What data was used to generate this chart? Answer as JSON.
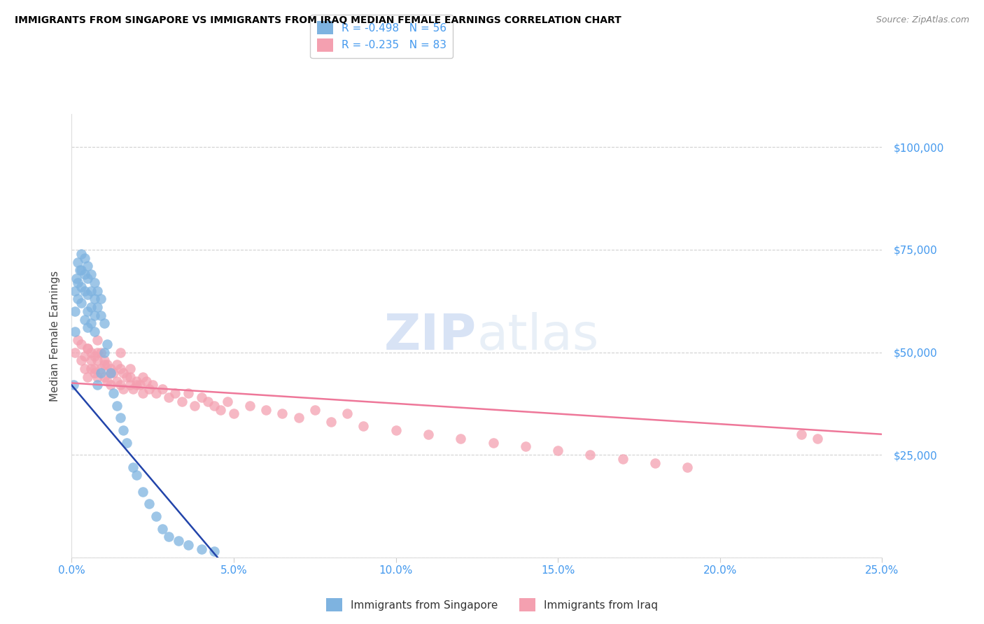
{
  "title": "IMMIGRANTS FROM SINGAPORE VS IMMIGRANTS FROM IRAQ MEDIAN FEMALE EARNINGS CORRELATION CHART",
  "source": "Source: ZipAtlas.com",
  "ylabel": "Median Female Earnings",
  "legend_singapore": "Immigrants from Singapore",
  "legend_iraq": "Immigrants from Iraq",
  "r_singapore": -0.498,
  "n_singapore": 56,
  "r_iraq": -0.235,
  "n_iraq": 83,
  "color_singapore": "#7EB3E0",
  "color_iraq": "#F4A0B0",
  "color_singapore_line": "#2244AA",
  "color_iraq_line": "#EE7799",
  "color_axis_labels": "#4499EE",
  "yticks": [
    0,
    25000,
    50000,
    75000,
    100000
  ],
  "ytick_labels": [
    "",
    "$25,000",
    "$50,000",
    "$75,000",
    "$100,000"
  ],
  "xlim": [
    0.0,
    0.25
  ],
  "ylim": [
    0,
    108000
  ],
  "sg_line_x0": 0.0,
  "sg_line_x1": 0.045,
  "sg_line_y0": 42000,
  "sg_line_y1": 0,
  "iq_line_x0": 0.0,
  "iq_line_x1": 0.25,
  "iq_line_y0": 42500,
  "iq_line_y1": 30000,
  "singapore_x": [
    0.0005,
    0.001,
    0.001,
    0.001,
    0.0015,
    0.002,
    0.002,
    0.002,
    0.0025,
    0.003,
    0.003,
    0.003,
    0.003,
    0.004,
    0.004,
    0.004,
    0.004,
    0.005,
    0.005,
    0.005,
    0.005,
    0.005,
    0.006,
    0.006,
    0.006,
    0.006,
    0.007,
    0.007,
    0.007,
    0.007,
    0.008,
    0.008,
    0.008,
    0.009,
    0.009,
    0.009,
    0.01,
    0.01,
    0.011,
    0.012,
    0.013,
    0.014,
    0.015,
    0.016,
    0.017,
    0.019,
    0.02,
    0.022,
    0.024,
    0.026,
    0.028,
    0.03,
    0.033,
    0.036,
    0.04,
    0.044
  ],
  "singapore_y": [
    42000,
    65000,
    60000,
    55000,
    68000,
    72000,
    67000,
    63000,
    70000,
    74000,
    70000,
    66000,
    62000,
    73000,
    69000,
    65000,
    58000,
    71000,
    68000,
    64000,
    60000,
    56000,
    69000,
    65000,
    61000,
    57000,
    67000,
    63000,
    59000,
    55000,
    65000,
    61000,
    42000,
    63000,
    59000,
    45000,
    57000,
    50000,
    52000,
    45000,
    40000,
    37000,
    34000,
    31000,
    28000,
    22000,
    20000,
    16000,
    13000,
    10000,
    7000,
    5000,
    4000,
    3000,
    2000,
    1500
  ],
  "iraq_x": [
    0.001,
    0.002,
    0.003,
    0.003,
    0.004,
    0.004,
    0.005,
    0.005,
    0.006,
    0.006,
    0.007,
    0.007,
    0.008,
    0.008,
    0.008,
    0.009,
    0.009,
    0.01,
    0.01,
    0.011,
    0.011,
    0.012,
    0.012,
    0.013,
    0.014,
    0.014,
    0.015,
    0.015,
    0.016,
    0.016,
    0.017,
    0.018,
    0.018,
    0.019,
    0.02,
    0.021,
    0.022,
    0.022,
    0.023,
    0.024,
    0.025,
    0.026,
    0.028,
    0.03,
    0.032,
    0.034,
    0.036,
    0.038,
    0.04,
    0.042,
    0.044,
    0.046,
    0.048,
    0.05,
    0.055,
    0.06,
    0.065,
    0.07,
    0.075,
    0.08,
    0.085,
    0.09,
    0.1,
    0.11,
    0.12,
    0.13,
    0.14,
    0.15,
    0.16,
    0.17,
    0.18,
    0.19,
    0.005,
    0.006,
    0.007,
    0.008,
    0.01,
    0.012,
    0.015,
    0.018,
    0.02,
    0.225,
    0.23
  ],
  "iraq_y": [
    50000,
    53000,
    48000,
    52000,
    49000,
    46000,
    51000,
    44000,
    50000,
    46000,
    49000,
    45000,
    53000,
    48000,
    44000,
    50000,
    46000,
    48000,
    44000,
    47000,
    43000,
    46000,
    42000,
    45000,
    47000,
    43000,
    46000,
    42000,
    45000,
    41000,
    44000,
    46000,
    42000,
    41000,
    43000,
    42000,
    44000,
    40000,
    43000,
    41000,
    42000,
    40000,
    41000,
    39000,
    40000,
    38000,
    40000,
    37000,
    39000,
    38000,
    37000,
    36000,
    38000,
    35000,
    37000,
    36000,
    35000,
    34000,
    36000,
    33000,
    35000,
    32000,
    31000,
    30000,
    29000,
    28000,
    27000,
    26000,
    25000,
    24000,
    23000,
    22000,
    51000,
    48000,
    46000,
    50000,
    47000,
    45000,
    50000,
    44000,
    42000,
    30000,
    29000
  ]
}
